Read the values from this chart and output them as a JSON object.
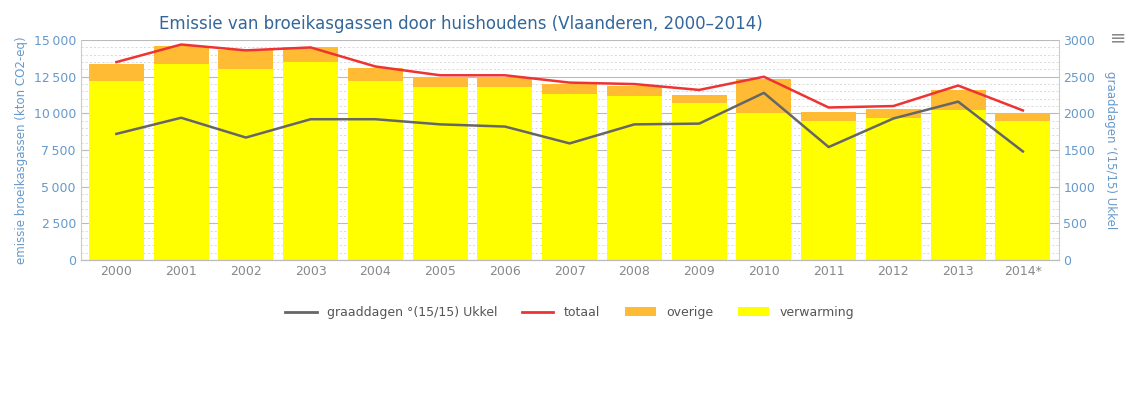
{
  "title": "Emissie van broeikasgassen door huishoudens (Vlaanderen, 2000–2014)",
  "years": [
    "2000",
    "2001",
    "2002",
    "2003",
    "2004",
    "2005",
    "2006",
    "2007",
    "2008",
    "2009",
    "2010",
    "2011",
    "2012",
    "2013",
    "2014*"
  ],
  "verwarming": [
    12200,
    13400,
    13000,
    13500,
    12200,
    11800,
    11800,
    11300,
    11200,
    10700,
    10000,
    9500,
    9700,
    10200,
    9500
  ],
  "overige": [
    1200,
    1200,
    1300,
    1000,
    900,
    700,
    650,
    700,
    700,
    550,
    2350,
    600,
    600,
    1400,
    550
  ],
  "totaal": [
    13500,
    14700,
    14300,
    14500,
    13200,
    12600,
    12600,
    12100,
    12000,
    11600,
    12500,
    10400,
    10500,
    11900,
    10200
  ],
  "graaddagen": [
    1720,
    1940,
    1670,
    1920,
    1920,
    1850,
    1820,
    1590,
    1850,
    1860,
    2280,
    1540,
    1930,
    2160,
    1480
  ],
  "ylabel_left": "emissie broeikasgassen (kton CO2-eq)",
  "ylabel_right": "graaddagen ‘(15/15) Ukkel",
  "ylim_left": [
    0,
    15000
  ],
  "ylim_right": [
    0,
    3000
  ],
  "yticks_left": [
    0,
    2500,
    5000,
    7500,
    10000,
    12500,
    15000
  ],
  "yticks_right": [
    0,
    500,
    1000,
    1500,
    2000,
    2500,
    3000
  ],
  "color_verwarming": "#ffff00",
  "color_overige": "#ffbb33",
  "color_totaal": "#ee3333",
  "color_graaddagen": "#666666",
  "background_color": "#ffffff",
  "grid_major_color": "#bbbbbb",
  "grid_minor_color": "#cccccc",
  "title_color": "#336699",
  "axis_label_color": "#6699cc",
  "tick_label_color": "#6699cc",
  "xtick_color": "#888888",
  "bar_width": 0.85
}
